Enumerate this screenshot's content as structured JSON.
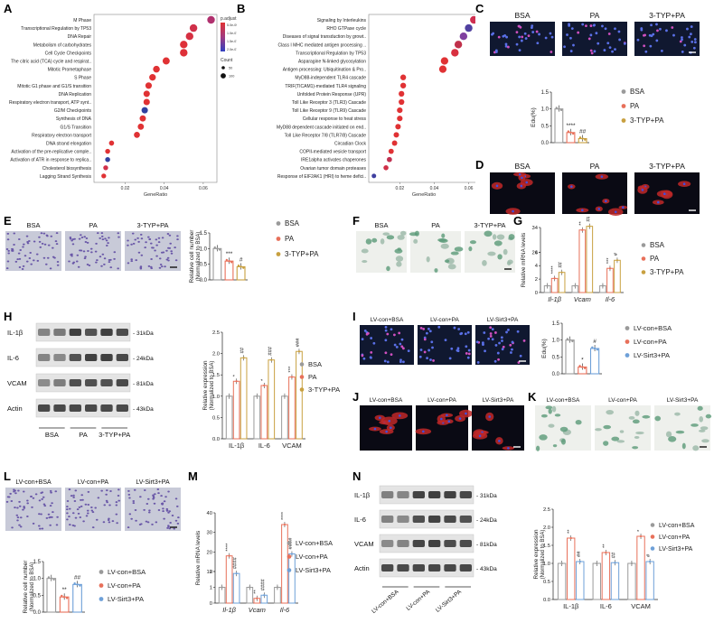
{
  "panels": {
    "A": {
      "label": "A",
      "xlabel": "GeneRatio",
      "xticks": [
        "0.02",
        "0.04",
        "0.06"
      ],
      "legend_title": "p.adjust",
      "legend_values": [
        "5.0e-09",
        "1.0e-07",
        "1.5e-07",
        "2.0e-07"
      ],
      "count_title": "Count",
      "count_values": [
        "50",
        "100"
      ],
      "terms": [
        {
          "name": "M Phase",
          "x": 0.064,
          "c": "#b0306e"
        },
        {
          "name": "Transcriptional Regulation by TP53",
          "x": 0.055,
          "c": "#d0304a"
        },
        {
          "name": "DNA Repair",
          "x": 0.053,
          "c": "#d63042"
        },
        {
          "name": "Metabolism of carbohydrates",
          "x": 0.05,
          "c": "#de3038"
        },
        {
          "name": "Cell Cycle Checkpoints",
          "x": 0.05,
          "c": "#de3038"
        },
        {
          "name": "The citric acid (TCA) cycle and respirat..",
          "x": 0.041,
          "c": "#e03234"
        },
        {
          "name": "Mitotic Prometaphase",
          "x": 0.036,
          "c": "#e03234"
        },
        {
          "name": "S Phase",
          "x": 0.034,
          "c": "#e03234"
        },
        {
          "name": "Mitotic G1 phase and G1/S transition",
          "x": 0.032,
          "c": "#e03234"
        },
        {
          "name": "DNA Replication",
          "x": 0.031,
          "c": "#e03234"
        },
        {
          "name": "Respiratory electron transport, ATP synt..",
          "x": 0.031,
          "c": "#e03234"
        },
        {
          "name": "G2/M Checkpoints",
          "x": 0.03,
          "c": "#3040a0"
        },
        {
          "name": "Synthesis of DNA",
          "x": 0.029,
          "c": "#e03234"
        },
        {
          "name": "G1/S Transition",
          "x": 0.028,
          "c": "#e03234"
        },
        {
          "name": "Respiratory electron transport",
          "x": 0.026,
          "c": "#e03234"
        },
        {
          "name": "DNA strand elongation",
          "x": 0.013,
          "c": "#e03234"
        },
        {
          "name": "Activation of the pre-replicative comple..",
          "x": 0.011,
          "c": "#e03234"
        },
        {
          "name": "Activation of ATR in response to replica..",
          "x": 0.011,
          "c": "#3040a0"
        },
        {
          "name": "Cholesterol biosynthesis",
          "x": 0.01,
          "c": "#d0304a"
        },
        {
          "name": "Lagging Strand Synthesis",
          "x": 0.009,
          "c": "#e03234"
        }
      ]
    },
    "B": {
      "label": "B",
      "xlabel": "GeneRatio",
      "xticks": [
        "0.02",
        "0.04",
        "0.06"
      ],
      "legend_title": "p.adjust",
      "legend_values": [
        "5.0e-08",
        "1.0e-07",
        "1.5e-07",
        "2.0e-07"
      ],
      "count_title": "Count",
      "count_values": [
        "50",
        "100",
        "150"
      ],
      "terms": [
        {
          "name": "Signaling by Interleukins",
          "x": 0.063,
          "c": "#d03050"
        },
        {
          "name": "RHO GTPase cycle",
          "x": 0.06,
          "c": "#5040a0"
        },
        {
          "name": "Diseases of signal transduction by growt..",
          "x": 0.057,
          "c": "#8040a0"
        },
        {
          "name": "Class I MHC mediated antigen processing ..",
          "x": 0.054,
          "c": "#c0304a"
        },
        {
          "name": "Transcriptional Regulation by TP53",
          "x": 0.052,
          "c": "#d83040"
        },
        {
          "name": "Asparagine N-linked glycosylation",
          "x": 0.046,
          "c": "#e03234"
        },
        {
          "name": "Antigen processing: Ubiquitination & Pro..",
          "x": 0.045,
          "c": "#e03234"
        },
        {
          "name": "MyD88-independent TLR4 cascade",
          "x": 0.022,
          "c": "#e03234"
        },
        {
          "name": "TRIF(TICAM1)-mediated TLR4 signaling",
          "x": 0.022,
          "c": "#e03234"
        },
        {
          "name": "Unfolded Protein Response (UPR)",
          "x": 0.021,
          "c": "#e03234"
        },
        {
          "name": "Toll Like Receptor 3 (TLR3) Cascade",
          "x": 0.021,
          "c": "#e03234"
        },
        {
          "name": "Toll Like Receptor 9 (TLR9) Cascade",
          "x": 0.02,
          "c": "#e03234"
        },
        {
          "name": "Cellular response to heat stress",
          "x": 0.02,
          "c": "#e03234"
        },
        {
          "name": "MyD88 dependent cascade initiated on end..",
          "x": 0.019,
          "c": "#e03234"
        },
        {
          "name": "Toll Like Receptor 7/8 (TLR7/8) Cascade",
          "x": 0.018,
          "c": "#e03234"
        },
        {
          "name": "Circadian Clock",
          "x": 0.017,
          "c": "#e03234"
        },
        {
          "name": "COPII-mediated vesicle transport",
          "x": 0.015,
          "c": "#e03234"
        },
        {
          "name": "IRE1alpha activates chaperones",
          "x": 0.014,
          "c": "#c03050"
        },
        {
          "name": "Ovarian tumor domain proteases",
          "x": 0.012,
          "c": "#d03048"
        },
        {
          "name": "Response of EIF2AK1 (HRI) to heme defici..",
          "x": 0.005,
          "c": "#4040a0"
        }
      ]
    },
    "C": {
      "label": "C",
      "groups": [
        "BSA",
        "PA",
        "3-TYP+PA"
      ],
      "ylabel": "Edu(%)",
      "yticks": [
        "0.0",
        "0.5",
        "1.0",
        "1.5"
      ],
      "values": [
        1.0,
        0.3,
        0.12
      ],
      "sig": [
        "",
        "****",
        "##"
      ],
      "legend": [
        "BSA",
        "PA",
        "3-TYP+PA"
      ]
    },
    "D": {
      "label": "D",
      "groups": [
        "BSA",
        "PA",
        "3-TYP+PA"
      ]
    },
    "E": {
      "label": "E",
      "groups": [
        "BSA",
        "PA",
        "3-TYP+PA"
      ],
      "ylabel": "Relative cell number",
      "ylabel2": "(Normalized to BSA)",
      "yticks": [
        "0.0",
        "0.5",
        "1.0",
        "1.5"
      ],
      "values": [
        1.0,
        0.6,
        0.42
      ],
      "sig": [
        "",
        "***",
        "#"
      ],
      "legend": [
        "BSA",
        "PA",
        "3-TYP+PA"
      ]
    },
    "F": {
      "label": "F",
      "groups": [
        "BSA",
        "PA",
        "3-TYP+PA"
      ]
    },
    "G": {
      "label": "G",
      "ylabel": "Relative mRNA levels",
      "yticks": [
        "0",
        "2",
        "4",
        "6",
        "24",
        "34"
      ],
      "genes": [
        "Il-1β",
        "Vcam",
        "Il-6"
      ],
      "values": [
        [
          1.0,
          2.1,
          3.0
        ],
        [
          1.0,
          33.0,
          34.5
        ],
        [
          1.0,
          3.6,
          4.8
        ]
      ],
      "sig": [
        [
          "",
          "****",
          "##"
        ],
        [
          "",
          "**",
          "####"
        ],
        [
          "",
          "***",
          "#"
        ]
      ],
      "legend": [
        "BSA",
        "PA",
        "3-TYP+PA"
      ]
    },
    "H": {
      "label": "H",
      "blots": [
        "IL-1β",
        "IL-6",
        "VCAM",
        "Actin"
      ],
      "kda": [
        "31kDa",
        "24kDa",
        "81kDa",
        "43kDa"
      ],
      "lanes": [
        "BSA",
        "PA",
        "3-TYP+PA"
      ],
      "ylabel": "Relative expression",
      "ylabel2": "(Normalized to BSA)",
      "yticks": [
        "0.0",
        "0.5",
        "1.0",
        "1.5",
        "2.0",
        "2.5"
      ],
      "genes": [
        "IL-1β",
        "IL-6",
        "VCAM"
      ],
      "values": [
        [
          1.0,
          1.35,
          1.9
        ],
        [
          1.0,
          1.25,
          1.85
        ],
        [
          1.0,
          1.45,
          2.05
        ]
      ],
      "sig": [
        [
          "",
          "*",
          "##"
        ],
        [
          "",
          "*",
          "###"
        ],
        [
          "",
          "***",
          "###"
        ]
      ],
      "legend": [
        "BSA",
        "PA",
        "3-TYP+PA"
      ]
    },
    "I": {
      "label": "I",
      "groups": [
        "LV-con+BSA",
        "LV-con+PA",
        "LV-Sirt3+PA"
      ],
      "ylabel": "Edu(%)",
      "yticks": [
        "0.0",
        "0.5",
        "1.0",
        "1.5"
      ],
      "values": [
        1.0,
        0.2,
        0.75
      ],
      "sig": [
        "",
        "*",
        "#"
      ],
      "legend": [
        "LV-con+BSA",
        "LV-con+PA",
        "LV-Sirt3+PA"
      ]
    },
    "J": {
      "label": "J",
      "groups": [
        "LV-con+BSA",
        "LV-con+PA",
        "LV-Sirt3+PA"
      ]
    },
    "K": {
      "label": "K",
      "groups": [
        "LV-con+BSA",
        "LV-con+PA",
        "LV-Sirt3+PA"
      ]
    },
    "L": {
      "label": "L",
      "groups": [
        "LV-con+BSA",
        "LV-con+PA",
        "LV-Sirt3+PA"
      ],
      "ylabel": "Relative cell number",
      "ylabel2": "(Normalized to BSA)",
      "yticks": [
        "0.0",
        "0.5",
        "1.0",
        "1.5"
      ],
      "values": [
        1.0,
        0.45,
        0.82
      ],
      "sig": [
        "",
        "**",
        "##"
      ],
      "legend": [
        "LV-con+BSA",
        "LV-con+PA",
        "LV-Sirt3+PA"
      ]
    },
    "M": {
      "label": "M",
      "ylabel": "Relative mRNA levels",
      "yticks": [
        "0",
        "1",
        "2",
        "10",
        "20",
        "30",
        "40"
      ],
      "genes": [
        "Il-1β",
        "Vcam",
        "Il-6"
      ],
      "values": [
        [
          1.0,
          18.0,
          9.0
        ],
        [
          1.0,
          0.3,
          0.5
        ],
        [
          1.0,
          34.0,
          19.0
        ]
      ],
      "sig": [
        [
          "",
          "****",
          "####"
        ],
        [
          "",
          "**",
          "####"
        ],
        [
          "",
          "****",
          "####"
        ]
      ],
      "legend": [
        "LV-con+BSA",
        "LV-con+PA",
        "LV-Sirt3+PA"
      ]
    },
    "N": {
      "label": "N",
      "blots": [
        "IL-1β",
        "IL-6",
        "VCAM",
        "Actin"
      ],
      "kda": [
        "31kDa",
        "24kDa",
        "81kDa",
        "43kDa"
      ],
      "lanes": [
        "LV-con+BSA",
        "LV-con+PA",
        "LV-Sirt3+PA"
      ],
      "ylabel": "Relative expression",
      "ylabel2": "(Normalized to BSA)",
      "yticks": [
        "0.0",
        "0.5",
        "1.0",
        "1.5",
        "2.0",
        "2.5"
      ],
      "genes": [
        "IL-1β",
        "IL-6",
        "VCAM"
      ],
      "values": [
        [
          1.0,
          1.7,
          1.05
        ],
        [
          1.0,
          1.3,
          1.02
        ],
        [
          1.0,
          1.75,
          1.05
        ]
      ],
      "sig": [
        [
          "",
          "**",
          "##"
        ],
        [
          "",
          "**",
          "##"
        ],
        [
          "",
          "*",
          "#"
        ]
      ],
      "legend": [
        "LV-con+BSA",
        "LV-con+PA",
        "LV-Sirt3+PA"
      ]
    }
  },
  "colors": {
    "g1": "#9a9a9a",
    "g2": "#e8705a",
    "g3": "#c8a040",
    "lv3": "#6ea0d8"
  }
}
